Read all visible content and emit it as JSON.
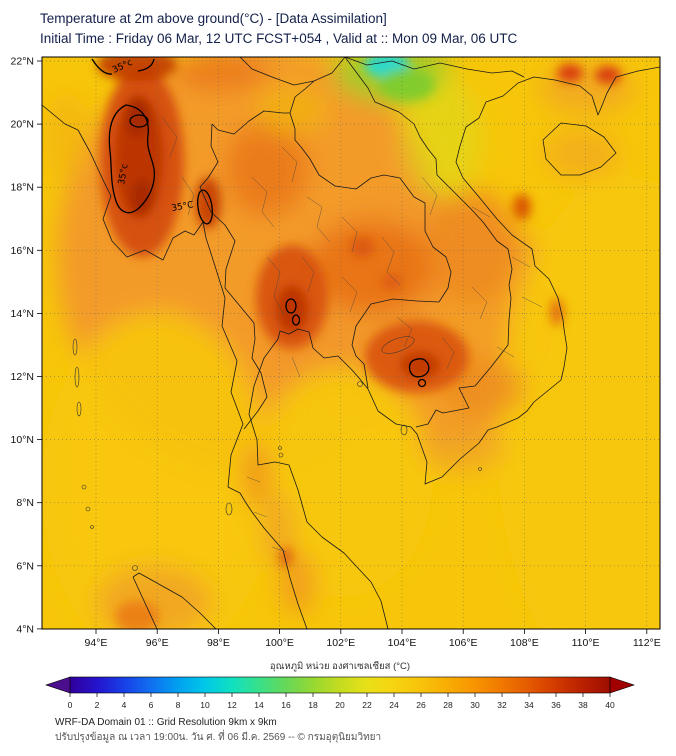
{
  "header": {
    "title": "Temperature at 2m above ground(°C) - [Data Assimilation]",
    "subtitle": "Initial Time : Friday 06 Mar, 12 UTC FCST+054 , Valid at :: Mon 09 Mar, 06 UTC"
  },
  "map": {
    "lat_ticks": [
      "22°N",
      "20°N",
      "18°N",
      "16°N",
      "14°N",
      "12°N",
      "10°N",
      "8°N",
      "6°N",
      "4°N"
    ],
    "lon_ticks": [
      "94°E",
      "96°E",
      "98°E",
      "100°E",
      "102°E",
      "104°E",
      "106°E",
      "108°E",
      "110°E",
      "112°E"
    ],
    "contour_labels": [
      "35°c",
      "35°c",
      "35°C"
    ]
  },
  "colorbar": {
    "label": "อุณหภูมิ หน่วย องศาเซลเซียส (°C)",
    "ticks": [
      "0",
      "2",
      "4",
      "6",
      "8",
      "10",
      "12",
      "14",
      "16",
      "18",
      "20",
      "22",
      "24",
      "26",
      "28",
      "30",
      "32",
      "34",
      "36",
      "38",
      "40"
    ],
    "stops": [
      {
        "t": 0,
        "color": "#30009C"
      },
      {
        "t": 2,
        "color": "#2414CC"
      },
      {
        "t": 4,
        "color": "#1840E8"
      },
      {
        "t": 6,
        "color": "#1070F0"
      },
      {
        "t": 8,
        "color": "#00A0F0"
      },
      {
        "t": 10,
        "color": "#00C8E8"
      },
      {
        "t": 12,
        "color": "#10E0C0"
      },
      {
        "t": 14,
        "color": "#38E08A"
      },
      {
        "t": 16,
        "color": "#66D858"
      },
      {
        "t": 18,
        "color": "#96D832"
      },
      {
        "t": 20,
        "color": "#C4DC20"
      },
      {
        "t": 22,
        "color": "#E8E018"
      },
      {
        "t": 24,
        "color": "#F6D410"
      },
      {
        "t": 26,
        "color": "#F8C30A"
      },
      {
        "t": 28,
        "color": "#F8AC04"
      },
      {
        "t": 30,
        "color": "#F89400"
      },
      {
        "t": 32,
        "color": "#F07800"
      },
      {
        "t": 34,
        "color": "#E45A00"
      },
      {
        "t": 36,
        "color": "#D23A00"
      },
      {
        "t": 38,
        "color": "#B82000"
      },
      {
        "t": 40,
        "color": "#9E0E00"
      }
    ],
    "arrow_left_color": "#4B0E8C",
    "arrow_right_color": "#A00000"
  },
  "footer": {
    "line1": "WRF-DA Domain 01 :: Grid Resolution 9km x 9km",
    "line2": "ปรับปรุงข้อมูล ณ เวลา 19:00น. วัน ศ. ที่ 06 มี.ค. 2569 -- © กรมอุตุนิยมวิทยา"
  }
}
